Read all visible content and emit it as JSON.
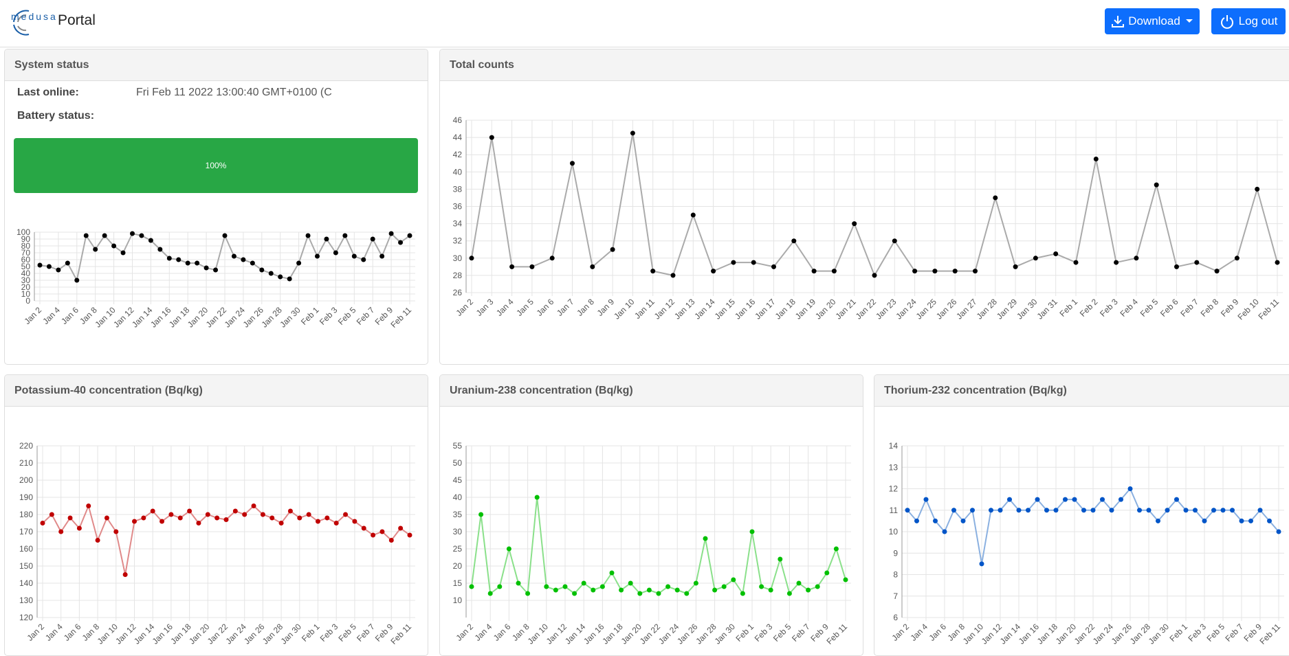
{
  "header": {
    "brand": "medusa",
    "title": "Portal",
    "download": "Download",
    "logout": "Log out"
  },
  "system_status": {
    "title": "System status",
    "last_online_label": "Last online:",
    "last_online_value": "Fri Feb 11 2022 13:00:40 GMT+0100 (C",
    "battery_label": "Battery status:",
    "battery": {
      "value": 100,
      "label": "100%"
    }
  },
  "chart_data": [
    {
      "type": "line",
      "color": "#000000",
      "line_color": "#aaaaaa",
      "grid": true,
      "categories": [
        "Jan 2",
        null,
        "Jan 4",
        null,
        "Jan 6",
        null,
        "Jan 8",
        null,
        "Jan 10",
        null,
        "Jan 12",
        null,
        "Jan 14",
        null,
        "Jan 16",
        null,
        "Jan 18",
        null,
        "Jan 20",
        null,
        "Jan 22",
        null,
        "Jan 24",
        null,
        "Jan 26",
        null,
        "Jan 28",
        null,
        "Jan 30",
        null,
        "Feb 1",
        null,
        "Feb 3",
        null,
        "Feb 5",
        null,
        "Feb 7",
        null,
        "Feb 9",
        null,
        "Feb 11"
      ],
      "values": [
        52,
        50,
        45,
        55,
        30,
        95,
        75,
        95,
        80,
        70,
        98,
        95,
        88,
        75,
        62,
        60,
        55,
        55,
        48,
        45,
        95,
        65,
        60,
        55,
        45,
        40,
        35,
        32,
        55,
        95,
        65,
        90,
        70,
        95,
        65,
        60,
        90,
        65,
        98,
        85,
        95
      ],
      "ylim": [
        0,
        100
      ],
      "yticks": [
        0,
        10,
        20,
        30,
        40,
        50,
        60,
        70,
        80,
        90,
        100
      ]
    },
    {
      "type": "line",
      "title": "Total counts",
      "color": "#000000",
      "line_color": "#aaaaaa",
      "grid": true,
      "categories": [
        "Jan 2",
        "Jan 3",
        "Jan 4",
        "Jan 5",
        "Jan 6",
        "Jan 7",
        "Jan 8",
        "Jan 9",
        "Jan 10",
        "Jan 11",
        "Jan 12",
        "Jan 13",
        "Jan 14",
        "Jan 15",
        "Jan 16",
        "Jan 17",
        "Jan 18",
        "Jan 19",
        "Jan 20",
        "Jan 21",
        "Jan 22",
        "Jan 23",
        "Jan 24",
        "Jan 25",
        "Jan 26",
        "Jan 27",
        "Jan 28",
        "Jan 29",
        "Jan 30",
        "Jan 31",
        "Feb 1",
        "Feb 2",
        "Feb 3",
        "Feb 4",
        "Feb 5",
        "Feb 6",
        "Feb 7",
        "Feb 8",
        "Feb 9",
        "Feb 10",
        "Feb 11"
      ],
      "values": [
        30,
        44,
        29,
        29,
        30,
        41,
        29,
        31,
        44.5,
        28.5,
        28,
        35,
        28.5,
        29.5,
        29.5,
        29,
        32,
        28.5,
        28.5,
        34,
        28,
        32,
        28.5,
        28.5,
        28.5,
        28.5,
        37,
        29,
        30,
        30.5,
        29.5,
        41.5,
        29.5,
        30,
        38.5,
        29,
        29.5,
        28.5,
        30,
        38,
        29.5
      ],
      "ylim": [
        26,
        46
      ],
      "yticks": [
        26,
        28,
        30,
        32,
        34,
        36,
        38,
        40,
        42,
        44,
        46
      ]
    },
    {
      "type": "line",
      "title": "Potassium-40 concentration (Bq/kg)",
      "color": "#c00000",
      "line_color": "#e08a8a",
      "grid": true,
      "categories": [
        "Jan 2",
        null,
        "Jan 4",
        null,
        "Jan 6",
        null,
        "Jan 8",
        null,
        "Jan 10",
        null,
        "Jan 12",
        null,
        "Jan 14",
        null,
        "Jan 16",
        null,
        "Jan 18",
        null,
        "Jan 20",
        null,
        "Jan 22",
        null,
        "Jan 24",
        null,
        "Jan 26",
        null,
        "Jan 28",
        null,
        "Jan 30",
        null,
        "Feb 1",
        null,
        "Feb 3",
        null,
        "Feb 5",
        null,
        "Feb 7",
        null,
        "Feb 9",
        null,
        "Feb 11"
      ],
      "values": [
        175,
        180,
        170,
        178,
        172,
        185,
        165,
        178,
        170,
        145,
        176,
        178,
        182,
        176,
        180,
        178,
        182,
        175,
        180,
        178,
        177,
        182,
        180,
        185,
        180,
        178,
        175,
        182,
        178,
        180,
        176,
        178,
        175,
        180,
        176,
        172,
        168,
        170,
        165,
        172,
        168
      ],
      "ylim": [
        120,
        220
      ],
      "yticks": [
        120,
        130,
        140,
        150,
        160,
        170,
        180,
        190,
        200,
        210,
        220
      ]
    },
    {
      "type": "line",
      "title": "Uranium-238 concentration (Bq/kg)",
      "color": "#00c000",
      "line_color": "#8ae08a",
      "grid": true,
      "categories": [
        "Jan 2",
        null,
        "Jan 4",
        null,
        "Jan 6",
        null,
        "Jan 8",
        null,
        "Jan 10",
        null,
        "Jan 12",
        null,
        "Jan 14",
        null,
        "Jan 16",
        null,
        "Jan 18",
        null,
        "Jan 20",
        null,
        "Jan 22",
        null,
        "Jan 24",
        null,
        "Jan 26",
        null,
        "Jan 28",
        null,
        "Jan 30",
        null,
        "Feb 1",
        null,
        "Feb 3",
        null,
        "Feb 5",
        null,
        "Feb 7",
        null,
        "Feb 9",
        null,
        "Feb 11"
      ],
      "values": [
        14,
        35,
        12,
        14,
        25,
        15,
        12,
        40,
        14,
        13,
        14,
        12,
        15,
        13,
        14,
        18,
        13,
        15,
        12,
        13,
        12,
        14,
        13,
        12,
        15,
        28,
        13,
        14,
        16,
        12,
        30,
        14,
        13,
        22,
        12,
        15,
        13,
        14,
        18,
        25,
        16
      ],
      "ylim": [
        5,
        55
      ],
      "yticks": [
        10,
        15,
        20,
        25,
        30,
        35,
        40,
        45,
        50,
        55
      ]
    },
    {
      "type": "line",
      "title": "Thorium-232 concentration (Bq/kg)",
      "color": "#0055c8",
      "line_color": "#8ab0e0",
      "grid": true,
      "categories": [
        "Jan 2",
        null,
        "Jan 4",
        null,
        "Jan 6",
        null,
        "Jan 8",
        null,
        "Jan 10",
        null,
        "Jan 12",
        null,
        "Jan 14",
        null,
        "Jan 16",
        null,
        "Jan 18",
        null,
        "Jan 20",
        null,
        "Jan 22",
        null,
        "Jan 24",
        null,
        "Jan 26",
        null,
        "Jan 28",
        null,
        "Jan 30",
        null,
        "Feb 1",
        null,
        "Feb 3",
        null,
        "Feb 5",
        null,
        "Feb 7",
        null,
        "Feb 9",
        null,
        "Feb 11"
      ],
      "values": [
        11,
        10.5,
        11.5,
        10.5,
        10,
        11,
        10.5,
        11,
        8.5,
        11,
        11,
        11.5,
        11,
        11,
        11.5,
        11,
        11,
        11.5,
        11.5,
        11,
        11,
        11.5,
        11,
        11.5,
        12,
        11,
        11,
        10.5,
        11,
        11.5,
        11,
        11,
        10.5,
        11,
        11,
        11,
        10.5,
        10.5,
        11,
        10.5,
        10
      ],
      "ylim": [
        6,
        14
      ],
      "yticks": [
        6,
        7,
        8,
        9,
        10,
        11,
        12,
        13,
        14
      ]
    }
  ]
}
